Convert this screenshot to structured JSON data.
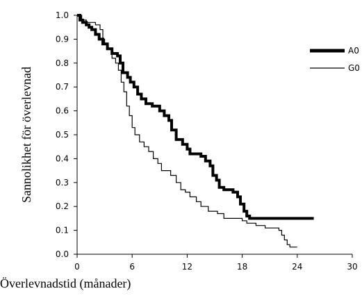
{
  "chart_data": {
    "type": "line",
    "title": "",
    "xlabel": "Överlevnadstid (månader)",
    "ylabel": "Sannolikhet för överlevnad",
    "xlim": [
      0,
      30
    ],
    "ylim": [
      0,
      1
    ],
    "xticks": [
      0,
      6,
      12,
      18,
      24,
      30
    ],
    "yticks": [
      "0.0",
      "0.1",
      "0.2",
      "0.3",
      "0.4",
      "0.5",
      "0.6",
      "0.7",
      "0.8",
      "0.9",
      "1.0"
    ],
    "grid": false,
    "legend_position": "right",
    "series": [
      {
        "name": "A0",
        "color": "#000000",
        "style": "step-thick",
        "points": [
          [
            0,
            1.0
          ],
          [
            0.3,
            0.98
          ],
          [
            0.6,
            0.97
          ],
          [
            1.0,
            0.96
          ],
          [
            1.3,
            0.95
          ],
          [
            1.6,
            0.94
          ],
          [
            2.0,
            0.92
          ],
          [
            2.4,
            0.9
          ],
          [
            2.8,
            0.88
          ],
          [
            3.3,
            0.86
          ],
          [
            3.8,
            0.84
          ],
          [
            4.4,
            0.83
          ],
          [
            4.7,
            0.8
          ],
          [
            5.0,
            0.76
          ],
          [
            5.5,
            0.74
          ],
          [
            5.8,
            0.72
          ],
          [
            6.2,
            0.7
          ],
          [
            6.6,
            0.67
          ],
          [
            7.0,
            0.65
          ],
          [
            7.5,
            0.63
          ],
          [
            8.2,
            0.62
          ],
          [
            9.0,
            0.6
          ],
          [
            9.5,
            0.58
          ],
          [
            10.0,
            0.56
          ],
          [
            10.3,
            0.52
          ],
          [
            10.8,
            0.48
          ],
          [
            11.5,
            0.46
          ],
          [
            12.0,
            0.44
          ],
          [
            12.3,
            0.42
          ],
          [
            13.5,
            0.41
          ],
          [
            14.0,
            0.39
          ],
          [
            14.5,
            0.37
          ],
          [
            14.8,
            0.33
          ],
          [
            15.2,
            0.31
          ],
          [
            15.5,
            0.28
          ],
          [
            16.0,
            0.27
          ],
          [
            17.0,
            0.26
          ],
          [
            17.5,
            0.24
          ],
          [
            17.8,
            0.21
          ],
          [
            18.2,
            0.18
          ],
          [
            18.5,
            0.16
          ],
          [
            18.8,
            0.15
          ],
          [
            25.8,
            0.15
          ]
        ]
      },
      {
        "name": "G0",
        "color": "#000000",
        "style": "step-thin",
        "points": [
          [
            0,
            1.0
          ],
          [
            0.5,
            0.98
          ],
          [
            1.0,
            0.97
          ],
          [
            2.0,
            0.96
          ],
          [
            2.5,
            0.94
          ],
          [
            2.8,
            0.9
          ],
          [
            3.0,
            0.88
          ],
          [
            3.3,
            0.86
          ],
          [
            3.8,
            0.82
          ],
          [
            4.2,
            0.8
          ],
          [
            4.5,
            0.77
          ],
          [
            4.8,
            0.72
          ],
          [
            5.1,
            0.68
          ],
          [
            5.4,
            0.62
          ],
          [
            5.7,
            0.58
          ],
          [
            6.0,
            0.53
          ],
          [
            6.3,
            0.5
          ],
          [
            6.8,
            0.47
          ],
          [
            7.3,
            0.45
          ],
          [
            7.8,
            0.43
          ],
          [
            8.3,
            0.4
          ],
          [
            8.8,
            0.38
          ],
          [
            9.2,
            0.35
          ],
          [
            10.2,
            0.33
          ],
          [
            10.8,
            0.3
          ],
          [
            11.3,
            0.27
          ],
          [
            11.8,
            0.26
          ],
          [
            12.3,
            0.24
          ],
          [
            13.0,
            0.22
          ],
          [
            13.5,
            0.2
          ],
          [
            14.3,
            0.18
          ],
          [
            15.3,
            0.17
          ],
          [
            16.0,
            0.15
          ],
          [
            18.0,
            0.14
          ],
          [
            18.5,
            0.13
          ],
          [
            19.5,
            0.12
          ],
          [
            20.5,
            0.11
          ],
          [
            22.0,
            0.1
          ],
          [
            22.3,
            0.08
          ],
          [
            22.6,
            0.06
          ],
          [
            22.9,
            0.04
          ],
          [
            23.2,
            0.03
          ],
          [
            24.0,
            0.03
          ]
        ]
      }
    ]
  }
}
